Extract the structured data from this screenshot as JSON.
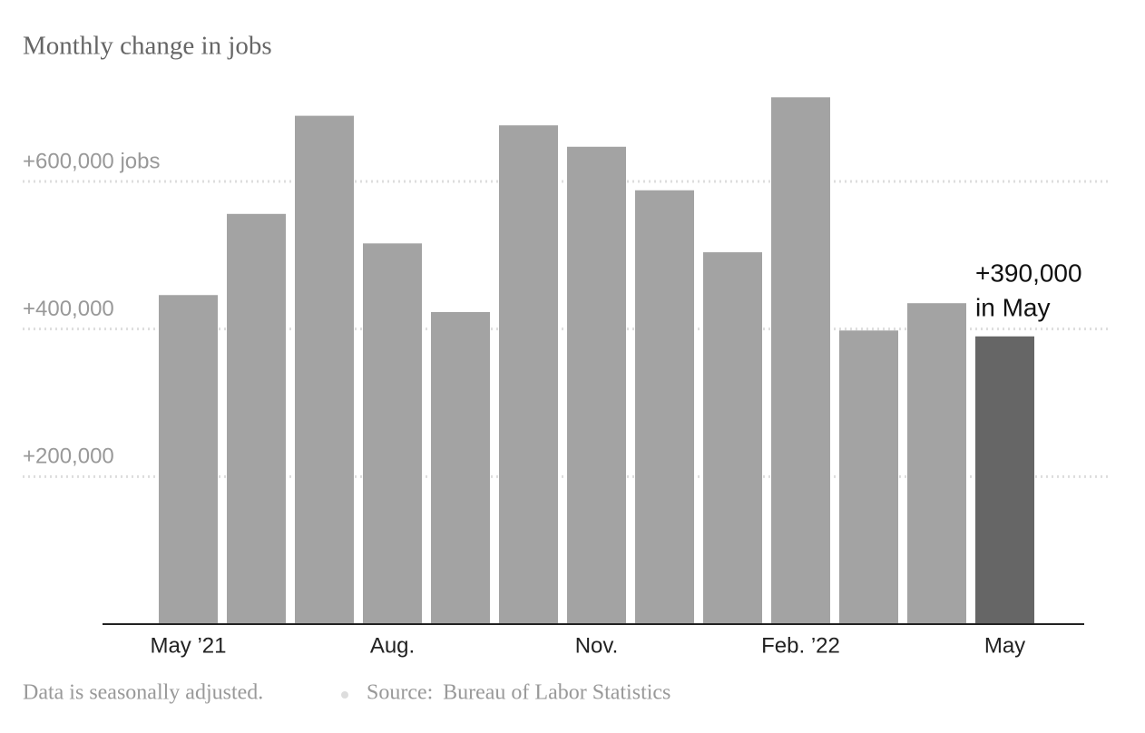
{
  "chart_data": {
    "type": "bar",
    "title": "Monthly change in jobs",
    "categories": [
      "May ’21",
      null,
      null,
      "Aug.",
      null,
      null,
      "Nov.",
      null,
      null,
      "Feb. ’22",
      null,
      null,
      "May"
    ],
    "values": [
      446000,
      556000,
      689000,
      516000,
      423000,
      676000,
      647000,
      588000,
      504000,
      714000,
      398000,
      435000,
      390000
    ],
    "colors": [
      "#a3a3a3",
      "#a3a3a3",
      "#a3a3a3",
      "#a3a3a3",
      "#a3a3a3",
      "#a3a3a3",
      "#a3a3a3",
      "#a3a3a3",
      "#a3a3a3",
      "#a3a3a3",
      "#a3a3a3",
      "#a3a3a3",
      "#666666"
    ],
    "ylim": [
      0,
      720000
    ],
    "yticks": [
      {
        "value": 200000,
        "label": "+200,000"
      },
      {
        "value": 400000,
        "label": "+400,000"
      },
      {
        "value": 600000,
        "label": "+600,000 jobs"
      }
    ],
    "grid": true,
    "annotation": [
      "+390,000",
      "in May"
    ],
    "note": "Data is seasonally adjusted.",
    "source": "Source:  Bureau of Labor Statistics"
  }
}
